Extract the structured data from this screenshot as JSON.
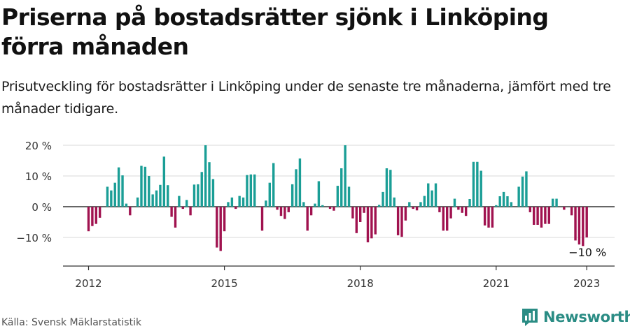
{
  "header": {
    "title": "Priserna på bostadsrätter sjönk i Linköping förra månaden",
    "subtitle": "Prisutveckling för bostadsrätter i Linköping under de senaste tre månaderna, jämfört med tre månader tidigare."
  },
  "footer": {
    "source": "Källa: Svensk Mäklarstatistik",
    "brand": "Newsworthy"
  },
  "colors": {
    "positive": "#1a9e96",
    "negative": "#a0124f",
    "gridline": "#d9d9d9",
    "zeroline": "#333333",
    "brand": "#2a8c84"
  },
  "chart_data": {
    "type": "bar",
    "ylim": [
      -20,
      20
    ],
    "yticks": [
      20,
      10,
      0,
      -10
    ],
    "ytick_labels": [
      "20 %",
      "10 %",
      "0 %",
      "−10 %"
    ],
    "xticks": [
      2012,
      2015,
      2018,
      2021,
      2023
    ],
    "xtick_labels": [
      "2012",
      "2015",
      "2018",
      "2021",
      "2023"
    ],
    "annotation": {
      "text": "−10 %",
      "value": -10
    },
    "series": [
      {
        "x": "2012-01",
        "value": -8.0
      },
      {
        "x": "2012-02",
        "value": -6.3
      },
      {
        "x": "2012-03",
        "value": -5.6
      },
      {
        "x": "2012-04",
        "value": -3.6
      },
      {
        "x": "2012-05",
        "value": 0
      },
      {
        "x": "2012-06",
        "value": 6.5
      },
      {
        "x": "2012-07",
        "value": 5.3
      },
      {
        "x": "2012-08",
        "value": 7.8
      },
      {
        "x": "2012-09",
        "value": 12.8
      },
      {
        "x": "2012-10",
        "value": 10.2
      },
      {
        "x": "2012-11",
        "value": 1.0
      },
      {
        "x": "2012-12",
        "value": -2.8
      },
      {
        "x": "2013-01",
        "value": 0
      },
      {
        "x": "2013-02",
        "value": 3.0
      },
      {
        "x": "2013-03",
        "value": 13.3
      },
      {
        "x": "2013-04",
        "value": 13.0
      },
      {
        "x": "2013-05",
        "value": 10.0
      },
      {
        "x": "2013-06",
        "value": 4.0
      },
      {
        "x": "2013-07",
        "value": 5.3
      },
      {
        "x": "2013-08",
        "value": 7.1
      },
      {
        "x": "2013-09",
        "value": 16.3
      },
      {
        "x": "2013-10",
        "value": 7.0
      },
      {
        "x": "2013-11",
        "value": -3.3
      },
      {
        "x": "2013-12",
        "value": -6.8
      },
      {
        "x": "2014-01",
        "value": 3.5
      },
      {
        "x": "2014-02",
        "value": -0.7
      },
      {
        "x": "2014-03",
        "value": 2.2
      },
      {
        "x": "2014-04",
        "value": -2.8
      },
      {
        "x": "2014-05",
        "value": 7.2
      },
      {
        "x": "2014-06",
        "value": 7.3
      },
      {
        "x": "2014-07",
        "value": 11.3
      },
      {
        "x": "2014-08",
        "value": 20.0
      },
      {
        "x": "2014-09",
        "value": 14.5
      },
      {
        "x": "2014-10",
        "value": 9.0
      },
      {
        "x": "2014-11",
        "value": -13.3
      },
      {
        "x": "2014-12",
        "value": -14.4
      },
      {
        "x": "2015-01",
        "value": -8.0
      },
      {
        "x": "2015-02",
        "value": 1.5
      },
      {
        "x": "2015-03",
        "value": 3.0
      },
      {
        "x": "2015-04",
        "value": -0.7
      },
      {
        "x": "2015-05",
        "value": 3.5
      },
      {
        "x": "2015-06",
        "value": 3.0
      },
      {
        "x": "2015-07",
        "value": 10.3
      },
      {
        "x": "2015-08",
        "value": 10.5
      },
      {
        "x": "2015-09",
        "value": 10.5
      },
      {
        "x": "2015-10",
        "value": 0
      },
      {
        "x": "2015-11",
        "value": -7.8
      },
      {
        "x": "2015-12",
        "value": 2.0
      },
      {
        "x": "2016-01",
        "value": 7.8
      },
      {
        "x": "2016-02",
        "value": 14.2
      },
      {
        "x": "2016-03",
        "value": -1.0
      },
      {
        "x": "2016-04",
        "value": -3.0
      },
      {
        "x": "2016-05",
        "value": -4.0
      },
      {
        "x": "2016-06",
        "value": -1.8
      },
      {
        "x": "2016-07",
        "value": 7.3
      },
      {
        "x": "2016-08",
        "value": 12.2
      },
      {
        "x": "2016-09",
        "value": 15.7
      },
      {
        "x": "2016-10",
        "value": 1.5
      },
      {
        "x": "2016-11",
        "value": -7.8
      },
      {
        "x": "2016-12",
        "value": -2.8
      },
      {
        "x": "2017-01",
        "value": 1.0
      },
      {
        "x": "2017-02",
        "value": 8.3
      },
      {
        "x": "2017-03",
        "value": 0.5
      },
      {
        "x": "2017-04",
        "value": 0
      },
      {
        "x": "2017-05",
        "value": -0.7
      },
      {
        "x": "2017-06",
        "value": -1.3
      },
      {
        "x": "2017-07",
        "value": 6.8
      },
      {
        "x": "2017-08",
        "value": 12.5
      },
      {
        "x": "2017-09",
        "value": 20.0
      },
      {
        "x": "2017-10",
        "value": 6.5
      },
      {
        "x": "2017-11",
        "value": -3.8
      },
      {
        "x": "2017-12",
        "value": -8.6
      },
      {
        "x": "2018-01",
        "value": -5.0
      },
      {
        "x": "2018-02",
        "value": -2.0
      },
      {
        "x": "2018-03",
        "value": -11.6
      },
      {
        "x": "2018-04",
        "value": -10.3
      },
      {
        "x": "2018-05",
        "value": -9.0
      },
      {
        "x": "2018-06",
        "value": 0.6
      },
      {
        "x": "2018-07",
        "value": 4.8
      },
      {
        "x": "2018-08",
        "value": 12.5
      },
      {
        "x": "2018-09",
        "value": 12.0
      },
      {
        "x": "2018-10",
        "value": 3.0
      },
      {
        "x": "2018-11",
        "value": -9.3
      },
      {
        "x": "2018-12",
        "value": -9.8
      },
      {
        "x": "2019-01",
        "value": -4.5
      },
      {
        "x": "2019-02",
        "value": 1.5
      },
      {
        "x": "2019-03",
        "value": -0.7
      },
      {
        "x": "2019-04",
        "value": -1.2
      },
      {
        "x": "2019-05",
        "value": 1.5
      },
      {
        "x": "2019-06",
        "value": 3.5
      },
      {
        "x": "2019-07",
        "value": 7.6
      },
      {
        "x": "2019-08",
        "value": 5.3
      },
      {
        "x": "2019-09",
        "value": 7.6
      },
      {
        "x": "2019-10",
        "value": -1.8
      },
      {
        "x": "2019-11",
        "value": -7.8
      },
      {
        "x": "2019-12",
        "value": -7.8
      },
      {
        "x": "2020-01",
        "value": -3.8
      },
      {
        "x": "2020-02",
        "value": 2.6
      },
      {
        "x": "2020-03",
        "value": -1.0
      },
      {
        "x": "2020-04",
        "value": -2.0
      },
      {
        "x": "2020-05",
        "value": -3.0
      },
      {
        "x": "2020-06",
        "value": 2.5
      },
      {
        "x": "2020-07",
        "value": 14.6
      },
      {
        "x": "2020-08",
        "value": 14.6
      },
      {
        "x": "2020-09",
        "value": 11.7
      },
      {
        "x": "2020-10",
        "value": -6.1
      },
      {
        "x": "2020-11",
        "value": -6.8
      },
      {
        "x": "2020-12",
        "value": -6.8
      },
      {
        "x": "2021-01",
        "value": 0.5
      },
      {
        "x": "2021-02",
        "value": 3.4
      },
      {
        "x": "2021-03",
        "value": 4.8
      },
      {
        "x": "2021-04",
        "value": 3.4
      },
      {
        "x": "2021-05",
        "value": 1.5
      },
      {
        "x": "2021-06",
        "value": 0
      },
      {
        "x": "2021-07",
        "value": 6.5
      },
      {
        "x": "2021-08",
        "value": 9.8
      },
      {
        "x": "2021-09",
        "value": 11.5
      },
      {
        "x": "2021-10",
        "value": -1.8
      },
      {
        "x": "2021-11",
        "value": -5.9
      },
      {
        "x": "2021-12",
        "value": -5.9
      },
      {
        "x": "2022-01",
        "value": -6.8
      },
      {
        "x": "2022-02",
        "value": -5.6
      },
      {
        "x": "2022-03",
        "value": -5.6
      },
      {
        "x": "2022-04",
        "value": 2.6
      },
      {
        "x": "2022-05",
        "value": 2.6
      },
      {
        "x": "2022-06",
        "value": 0
      },
      {
        "x": "2022-07",
        "value": -1.0
      },
      {
        "x": "2022-08",
        "value": 0
      },
      {
        "x": "2022-09",
        "value": -2.8
      },
      {
        "x": "2022-10",
        "value": -11.0
      },
      {
        "x": "2022-11",
        "value": -12.3
      },
      {
        "x": "2022-12",
        "value": -12.8
      },
      {
        "x": "2023-01",
        "value": -10.0
      }
    ]
  }
}
